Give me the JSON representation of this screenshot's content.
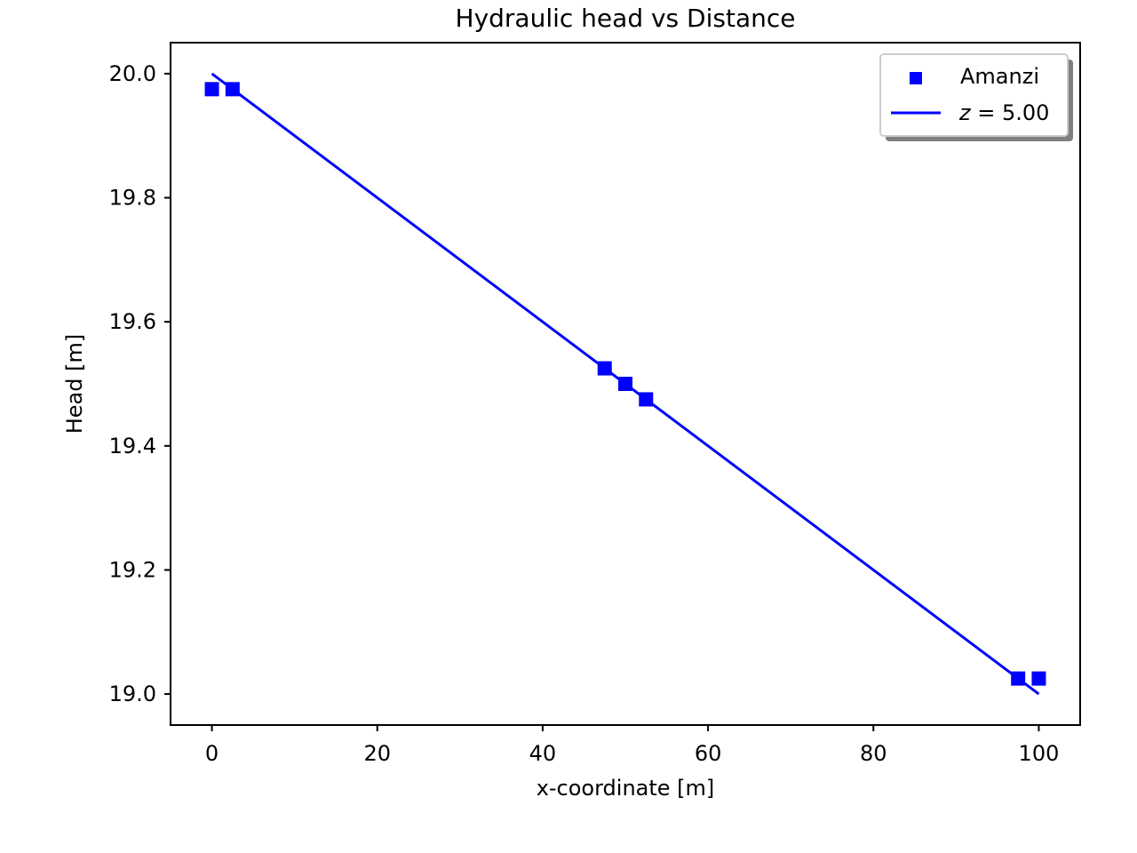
{
  "chart_data": {
    "type": "scatter",
    "title": "Hydraulic head vs Distance",
    "xlabel": "x-coordinate [m]",
    "ylabel": "Head [m]",
    "xlim": [
      -5,
      105
    ],
    "ylim": [
      18.95,
      20.05
    ],
    "xticks": [
      0,
      20,
      40,
      60,
      80,
      100
    ],
    "yticks": [
      19.0,
      19.2,
      19.4,
      19.6,
      19.8,
      20.0
    ],
    "xtick_labels": [
      "0",
      "20",
      "40",
      "60",
      "80",
      "100"
    ],
    "ytick_labels": [
      "19.0",
      "19.2",
      "19.4",
      "19.6",
      "19.8",
      "20.0"
    ],
    "grid": false,
    "legend_position": "top-right",
    "series": [
      {
        "name": "Amanzi",
        "kind": "scatter",
        "marker": "square",
        "color": "#0000ff",
        "x": [
          0.0,
          2.5,
          47.5,
          50.0,
          52.5,
          97.5,
          100.0
        ],
        "y": [
          19.975,
          19.975,
          19.525,
          19.5,
          19.475,
          19.025,
          19.025
        ]
      },
      {
        "name": "z = 5.00",
        "name_prefix": "z",
        "name_suffix": " = 5.00",
        "kind": "line",
        "color": "#0000ff",
        "x": [
          0.0,
          100.0
        ],
        "y": [
          20.0,
          19.0
        ]
      }
    ]
  }
}
